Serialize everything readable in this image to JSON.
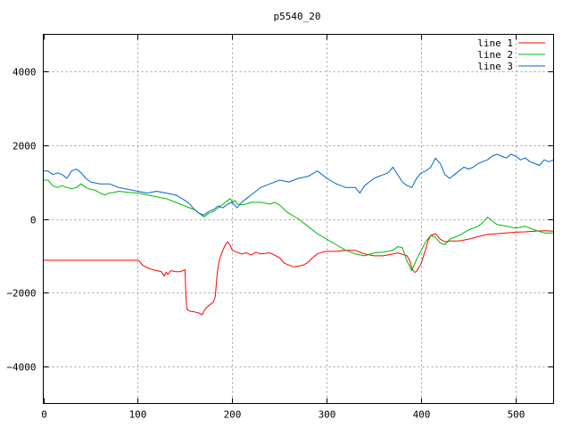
{
  "chart_data": {
    "type": "line",
    "title": "p5540_20",
    "xlabel": "",
    "ylabel": "",
    "xlim": [
      0,
      540
    ],
    "ylim": [
      -5000,
      5000
    ],
    "x_ticks": [
      0,
      100,
      200,
      300,
      400,
      500
    ],
    "y_ticks": [
      -4000,
      -2000,
      0,
      2000,
      4000
    ],
    "grid": true,
    "legend_position": "top-right",
    "series": [
      {
        "name": "line 1",
        "color": "#ff0000",
        "x": [
          0,
          100,
          102,
          105,
          110,
          115,
          120,
          125,
          128,
          130,
          132,
          135,
          140,
          145,
          150,
          151,
          152,
          155,
          160,
          165,
          168,
          170,
          172,
          175,
          180,
          182,
          184,
          185,
          187,
          190,
          193,
          195,
          198,
          200,
          205,
          210,
          215,
          220,
          225,
          230,
          240,
          250,
          255,
          260,
          265,
          270,
          275,
          280,
          285,
          290,
          295,
          300,
          310,
          320,
          330,
          340,
          350,
          360,
          370,
          375,
          380,
          385,
          388,
          390,
          393,
          395,
          400,
          403,
          405,
          407,
          410,
          415,
          420,
          425,
          430,
          440,
          450,
          460,
          470,
          480,
          490,
          500,
          510,
          520,
          530,
          540
        ],
        "y": [
          -1120,
          -1120,
          -1150,
          -1250,
          -1320,
          -1370,
          -1400,
          -1430,
          -1550,
          -1450,
          -1500,
          -1400,
          -1430,
          -1430,
          -1380,
          -2100,
          -2450,
          -2500,
          -2520,
          -2550,
          -2600,
          -2500,
          -2420,
          -2350,
          -2250,
          -2100,
          -1500,
          -1300,
          -1050,
          -850,
          -680,
          -620,
          -720,
          -850,
          -900,
          -950,
          -920,
          -980,
          -900,
          -950,
          -920,
          -1050,
          -1200,
          -1250,
          -1300,
          -1280,
          -1250,
          -1180,
          -1050,
          -950,
          -900,
          -880,
          -880,
          -850,
          -850,
          -950,
          -1000,
          -1000,
          -950,
          -920,
          -960,
          -1000,
          -1150,
          -1350,
          -1450,
          -1420,
          -1200,
          -950,
          -800,
          -600,
          -450,
          -400,
          -550,
          -620,
          -600,
          -600,
          -550,
          -480,
          -420,
          -400,
          -380,
          -360,
          -350,
          -330,
          -320,
          -330
        ]
      },
      {
        "name": "line 2",
        "color": "#00bb00",
        "x": [
          0,
          5,
          10,
          15,
          20,
          25,
          30,
          35,
          40,
          45,
          50,
          55,
          60,
          65,
          70,
          75,
          80,
          90,
          100,
          110,
          120,
          130,
          140,
          150,
          160,
          165,
          170,
          175,
          180,
          185,
          190,
          195,
          198,
          200,
          203,
          205,
          210,
          215,
          220,
          230,
          240,
          245,
          250,
          255,
          260,
          270,
          280,
          290,
          300,
          310,
          320,
          330,
          340,
          350,
          360,
          370,
          375,
          380,
          385,
          390,
          395,
          400,
          405,
          410,
          415,
          420,
          425,
          430,
          440,
          450,
          460,
          465,
          470,
          475,
          480,
          490,
          500,
          510,
          520,
          530,
          540
        ],
        "y": [
          1050,
          1050,
          900,
          850,
          900,
          850,
          820,
          850,
          950,
          850,
          800,
          780,
          700,
          650,
          700,
          720,
          750,
          720,
          700,
          650,
          600,
          550,
          450,
          350,
          250,
          150,
          50,
          150,
          200,
          300,
          400,
          500,
          550,
          450,
          500,
          400,
          380,
          400,
          450,
          450,
          400,
          450,
          380,
          250,
          150,
          0,
          -200,
          -400,
          -550,
          -700,
          -850,
          -950,
          -1000,
          -920,
          -900,
          -850,
          -750,
          -780,
          -1150,
          -1400,
          -1100,
          -850,
          -600,
          -450,
          -500,
          -650,
          -700,
          -550,
          -450,
          -300,
          -200,
          -100,
          50,
          -50,
          -150,
          -200,
          -250,
          -200,
          -300,
          -380,
          -380
        ]
      },
      {
        "name": "line 3",
        "color": "#0066cc",
        "x": [
          0,
          5,
          10,
          15,
          20,
          25,
          30,
          35,
          40,
          45,
          50,
          60,
          70,
          80,
          90,
          100,
          110,
          120,
          130,
          140,
          150,
          155,
          160,
          165,
          170,
          175,
          180,
          185,
          190,
          195,
          200,
          205,
          210,
          215,
          220,
          225,
          230,
          240,
          250,
          260,
          270,
          280,
          290,
          300,
          310,
          315,
          320,
          330,
          335,
          340,
          345,
          350,
          355,
          360,
          365,
          370,
          375,
          380,
          385,
          390,
          395,
          400,
          405,
          410,
          413,
          415,
          420,
          425,
          430,
          435,
          440,
          445,
          450,
          455,
          460,
          465,
          470,
          475,
          480,
          485,
          490,
          495,
          500,
          505,
          510,
          515,
          520,
          525,
          530,
          535,
          540
        ],
        "y": [
          1300,
          1300,
          1200,
          1250,
          1200,
          1100,
          1300,
          1350,
          1250,
          1100,
          1000,
          950,
          950,
          850,
          800,
          750,
          700,
          750,
          700,
          650,
          500,
          400,
          250,
          150,
          100,
          200,
          250,
          350,
          300,
          400,
          450,
          300,
          450,
          550,
          650,
          750,
          850,
          950,
          1050,
          1000,
          1100,
          1150,
          1300,
          1100,
          950,
          900,
          850,
          850,
          700,
          900,
          1000,
          1100,
          1150,
          1200,
          1250,
          1400,
          1200,
          1000,
          900,
          850,
          1100,
          1250,
          1300,
          1400,
          1550,
          1650,
          1500,
          1200,
          1100,
          1200,
          1300,
          1400,
          1350,
          1400,
          1500,
          1550,
          1600,
          1700,
          1750,
          1700,
          1650,
          1750,
          1700,
          1600,
          1650,
          1550,
          1500,
          1450,
          1600,
          1550,
          1600
        ]
      }
    ]
  }
}
